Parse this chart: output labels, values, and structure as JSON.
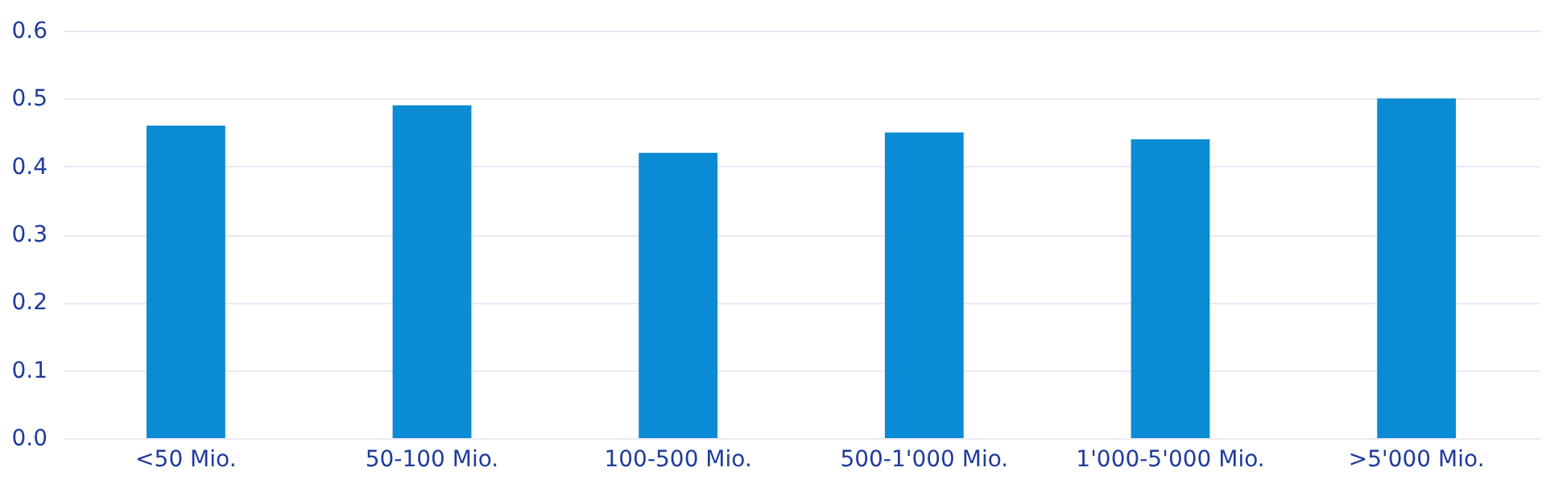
{
  "chart_data": {
    "type": "bar",
    "categories": [
      "<50 Mio.",
      "50-100 Mio.",
      "100-500 Mio.",
      "500-1'000 Mio.",
      "1'000-5'000 Mio.",
      ">5'000 Mio."
    ],
    "values": [
      0.46,
      0.49,
      0.42,
      0.45,
      0.44,
      0.5
    ],
    "color": "#0a8bd3",
    "ylim": [
      0,
      0.6
    ],
    "yticks": [
      {
        "value": 0,
        "label": "0.0"
      },
      0.1,
      0.2,
      0.3,
      0.4,
      0.5,
      0.6
    ],
    "grid": "y"
  }
}
